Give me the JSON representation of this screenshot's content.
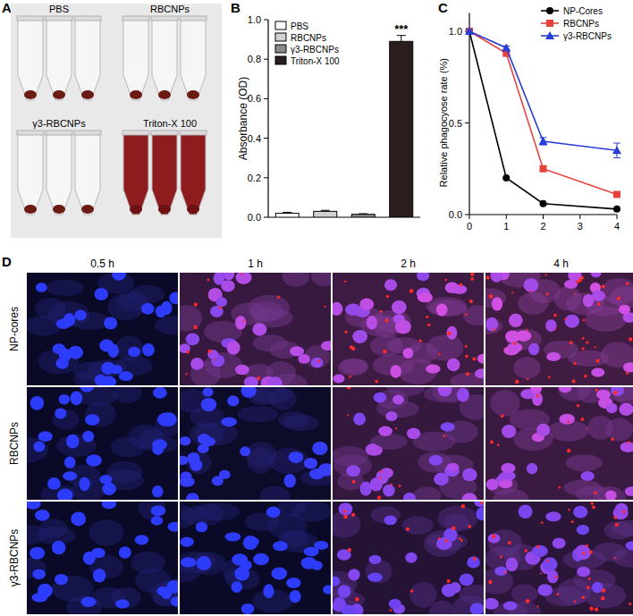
{
  "panel_labels": [
    "A",
    "B",
    "C",
    "D"
  ],
  "photo": {
    "labels": [
      "PBS",
      "RBCNPs",
      "γ3-RBCNPs",
      "Triton-X 100"
    ]
  },
  "microscopy": {
    "columns": [
      "0.5 h",
      "1 h",
      "2 h",
      "4 h"
    ],
    "rows": [
      "NP-cores",
      "RBCNPs",
      "γ3-RBCNPs"
    ]
  },
  "chart_data": [
    {
      "type": "bar",
      "y_label": "Absorbance (OD)",
      "categories": [
        "PBS",
        "RBCNPs",
        "γ3-RBCNPs",
        "Triton-X 100"
      ],
      "values": [
        0.02,
        0.03,
        0.015,
        0.89
      ],
      "errors": [
        0.005,
        0.005,
        0.003,
        0.03
      ],
      "colors": [
        "#ffffff",
        "#d0d0d0",
        "#8a8a8a",
        "#2b1d1d"
      ],
      "ylim": [
        0,
        1.0
      ],
      "yticks": [
        {
          "value": 0,
          "label": "0.0"
        },
        {
          "value": 0.2,
          "label": "0.2"
        },
        {
          "value": 0.4,
          "label": "0.4"
        },
        {
          "value": 0.6,
          "label": "0.6"
        },
        {
          "value": 0.8,
          "label": "0.8"
        },
        {
          "value": 1.0,
          "label": "1.0"
        }
      ],
      "legend": "top-left",
      "tick_labels": "y",
      "annotations": [
        {
          "text": "***",
          "x": "Triton-X 100"
        }
      ]
    },
    {
      "type": "line",
      "y_label": "Relative phagocyose rate (%)",
      "x": [
        0,
        1,
        2,
        4
      ],
      "xlim": [
        0,
        4
      ],
      "xticks": [
        0,
        1,
        2,
        3,
        4
      ],
      "ylim": [
        0,
        1.1
      ],
      "yticks": [
        {
          "value": 0,
          "label": "0.0"
        },
        {
          "value": 0.5,
          "label": "0.5"
        },
        {
          "value": 1.0,
          "label": "1.0"
        }
      ],
      "legend": "top-right",
      "series": [
        {
          "name": "NP-Cores",
          "color": "#000000",
          "marker": "circle",
          "values": [
            1.0,
            0.2,
            0.06,
            0.03
          ]
        },
        {
          "name": "RBCNPs",
          "color": "#e8413c",
          "marker": "square",
          "values": [
            1.0,
            0.88,
            0.25,
            0.11
          ]
        },
        {
          "name": "γ3-RBCNPs",
          "color": "#2a3ed6",
          "marker": "triangle",
          "values": [
            1.0,
            0.91,
            0.4,
            0.35
          ],
          "errors": [
            0.01,
            0.01,
            0.02,
            0.04
          ]
        }
      ]
    }
  ]
}
